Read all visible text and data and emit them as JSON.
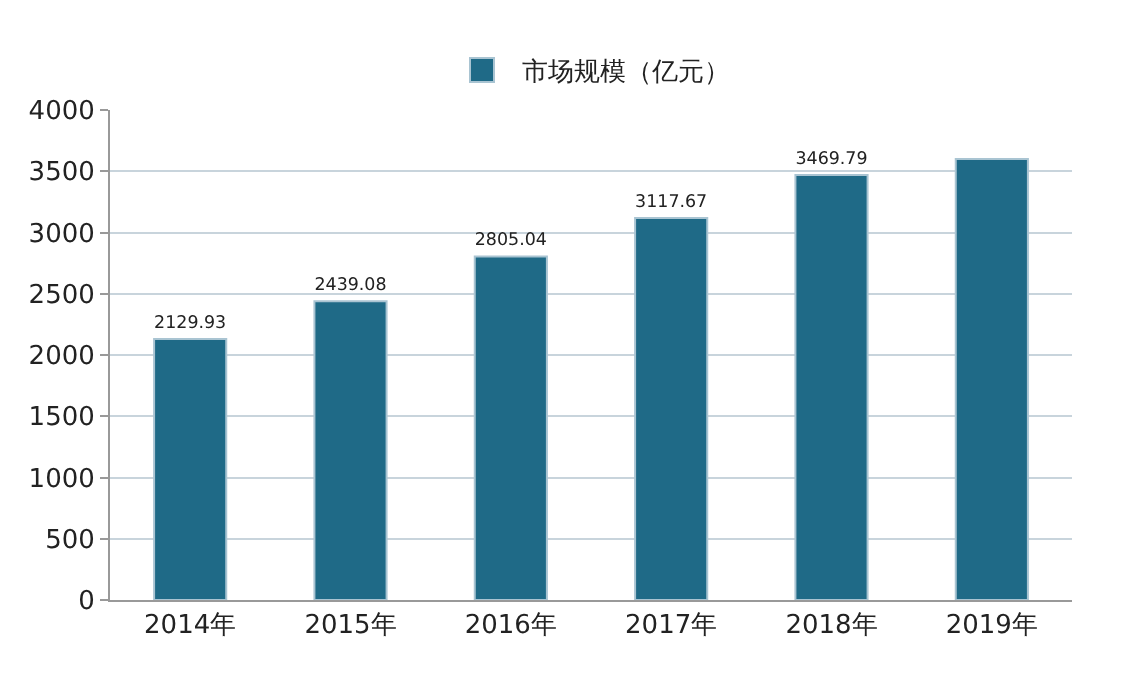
{
  "chart_data": {
    "type": "bar",
    "categories": [
      "2014年",
      "2015年",
      "2016年",
      "2017年",
      "2018年",
      "2019年"
    ],
    "series": [
      {
        "name": "市场规模（亿元）",
        "color": "#1f6a87",
        "values": [
          2129.93,
          2439.08,
          2805.04,
          3117.67,
          3469.79,
          3600
        ],
        "value_labels": [
          "2129.93",
          "2439.08",
          "2805.04",
          "3117.67",
          "3469.79",
          null
        ]
      }
    ],
    "ylim": [
      0,
      4000
    ],
    "yticks": [
      0,
      500,
      1000,
      1500,
      2000,
      2500,
      3000,
      3500,
      4000
    ],
    "grid": "y",
    "legend": "top"
  }
}
